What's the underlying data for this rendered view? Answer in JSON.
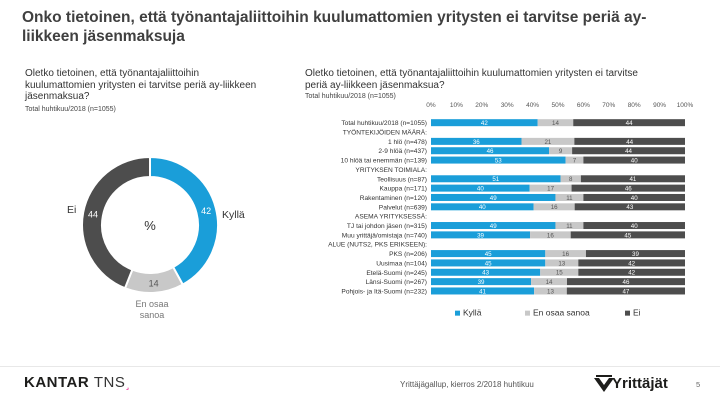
{
  "page": {
    "title": "Onko tietoinen, että työnantajaliittoihin kuulumattomien yritysten ei tarvitse periä ay-liikkeen jäsenmaksuja",
    "footer_survey": "Yrittäjägallup, kierros 2/2018 huhtikuu",
    "page_number": "5",
    "brand_kantar": "KANTAR",
    "brand_tns": "TNS",
    "brand_mark": "˼",
    "logo_text": "Yrittäjät"
  },
  "left_panel": {
    "question": "Oletko tietoinen, että työnantajaliittoihin kuulumattomien yritysten ei tarvitse periä ay-liikkeen jäsenmaksua?",
    "base": "Total huhtikuu/2018 (n=1055)"
  },
  "right_panel": {
    "question": "Oletko tietoinen, että työnantajaliittoihin kuulumattomien yritysten ei tarvitse periä ay-liikkeen jäsenmaksua?",
    "base": "Total huhtikuu/2018 (n=1055)"
  },
  "chart_data": [
    {
      "type": "pie",
      "variant": "donut",
      "center_label": "%",
      "labels": [
        "Kyllä",
        "En osaa sanoa",
        "Ei"
      ],
      "values": [
        42,
        14,
        44
      ],
      "colors": [
        "#1a9ed9",
        "#c8c8c8",
        "#4d4d4d"
      ]
    },
    {
      "type": "bar",
      "orientation": "horizontal",
      "stacked": true,
      "xlim": [
        0,
        100
      ],
      "x_ticks": [
        "0%",
        "10%",
        "20%",
        "30%",
        "40%",
        "50%",
        "60%",
        "70%",
        "80%",
        "90%",
        "100%"
      ],
      "rows": [
        {
          "label": "Total huhtikuu/2018 (n=1055)",
          "values": [
            42,
            14,
            44
          ]
        },
        {
          "label": "TYÖNTEKIJÖIDEN MÄÄRÄ:",
          "header": true
        },
        {
          "label": "1 hlö (n=478)",
          "values": [
            36,
            21,
            44
          ]
        },
        {
          "label": "2-9 hlöä (n=437)",
          "values": [
            46,
            9,
            44
          ]
        },
        {
          "label": "10 hlöä tai enemmän (n=139)",
          "values": [
            53,
            7,
            40
          ]
        },
        {
          "label": "YRITYKSEN TOIMIALA:",
          "header": true
        },
        {
          "label": "Teollisuus (n=87)",
          "values": [
            51,
            8,
            41
          ]
        },
        {
          "label": "Kauppa (n=171)",
          "values": [
            40,
            17,
            46
          ]
        },
        {
          "label": "Rakentaminen (n=120)",
          "values": [
            49,
            11,
            40
          ]
        },
        {
          "label": "Palvelut (n=639)",
          "values": [
            40,
            16,
            43
          ]
        },
        {
          "label": "ASEMA YRITYKSESSÄ:",
          "header": true
        },
        {
          "label": "TJ tai johdon jäsen (n=315)",
          "values": [
            49,
            11,
            40
          ]
        },
        {
          "label": "Muu yrittäjä/omistaja (n=740)",
          "values": [
            39,
            16,
            45
          ]
        },
        {
          "label": "ALUE (NUTS2, PKS ERIKSEEN):",
          "header": true
        },
        {
          "label": "PKS (n=206)",
          "values": [
            45,
            16,
            39
          ]
        },
        {
          "label": "Uusimaa (n=104)",
          "values": [
            45,
            13,
            42
          ]
        },
        {
          "label": "Etelä-Suomi (n=245)",
          "values": [
            43,
            15,
            42
          ]
        },
        {
          "label": "Länsi-Suomi (n=267)",
          "values": [
            39,
            14,
            46
          ]
        },
        {
          "label": "Pohjois- ja Itä-Suomi (n=232)",
          "values": [
            41,
            13,
            47
          ]
        }
      ],
      "series": [
        {
          "name": "Kyllä",
          "color": "#1a9ed9"
        },
        {
          "name": "En osaa sanoa",
          "color": "#c8c8c8"
        },
        {
          "name": "Ei",
          "color": "#4d4d4d"
        }
      ],
      "legend_position": "bottom"
    }
  ]
}
